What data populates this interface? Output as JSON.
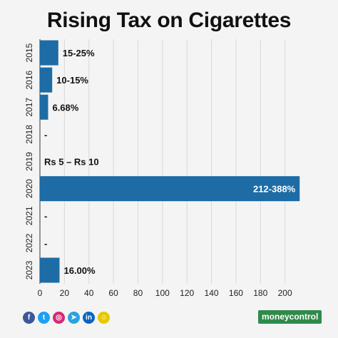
{
  "chart_data": {
    "type": "bar",
    "orientation": "horizontal",
    "title": "Rising Tax on Cigarettes",
    "categories": [
      "2015",
      "2016",
      "2017",
      "2018",
      "2019",
      "2020",
      "2021",
      "2022",
      "2023"
    ],
    "values": [
      15,
      10,
      6.68,
      null,
      null,
      212,
      null,
      null,
      16
    ],
    "bar_labels": [
      "15-25%",
      "10-15%",
      "6.68%",
      "-",
      "Rs 5 – Rs 10",
      "212-388%",
      "-",
      "-",
      "16.00%"
    ],
    "xticks": [
      0,
      20,
      40,
      60,
      80,
      100,
      120,
      140,
      160,
      180,
      200
    ],
    "xlim": [
      0,
      220
    ],
    "grid": true,
    "bar_color": "#1e6ca5"
  },
  "footer": {
    "brand": "moneycontrol",
    "icons": [
      {
        "name": "facebook-icon",
        "glyph": "f",
        "color": "#3b5998"
      },
      {
        "name": "twitter-icon",
        "glyph": "t",
        "color": "#1da1f2"
      },
      {
        "name": "instagram-icon",
        "glyph": "◎",
        "color": "#d62976"
      },
      {
        "name": "telegram-icon",
        "glyph": "➤",
        "color": "#2aa3df"
      },
      {
        "name": "linkedin-icon",
        "glyph": "in",
        "color": "#0a66c2"
      },
      {
        "name": "snapchat-icon",
        "glyph": "☺",
        "color": "#e6c800"
      }
    ]
  }
}
